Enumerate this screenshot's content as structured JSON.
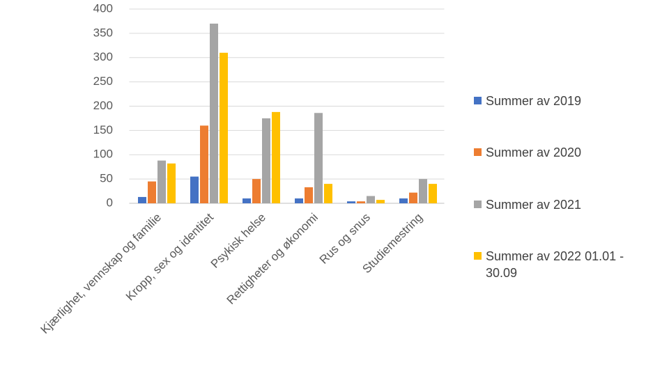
{
  "chart_data": {
    "type": "bar",
    "categories": [
      "Kjærlighet, vennskap og familie",
      "Kropp, sex og identitet",
      "Psykisk helse",
      "Rettigheter og økonomi",
      "Rus og snus",
      "Studiemestring"
    ],
    "series": [
      {
        "name": "Summer av 2019",
        "color": "#4472c4",
        "values": [
          13,
          55,
          10,
          10,
          4,
          10
        ]
      },
      {
        "name": "Summer av 2020",
        "color": "#ed7d31",
        "values": [
          45,
          160,
          50,
          33,
          4,
          22
        ]
      },
      {
        "name": "Summer av 2021",
        "color": "#a5a5a5",
        "values": [
          88,
          370,
          175,
          186,
          15,
          50
        ]
      },
      {
        "name": "Summer av 2022 01.01 - 30.09",
        "color": "#ffc000",
        "values": [
          82,
          310,
          188,
          40,
          7,
          40
        ]
      }
    ],
    "ylim": [
      0,
      400
    ],
    "yticks": [
      0,
      50,
      100,
      150,
      200,
      250,
      300,
      350,
      400
    ],
    "grid": true,
    "legend": "right"
  }
}
